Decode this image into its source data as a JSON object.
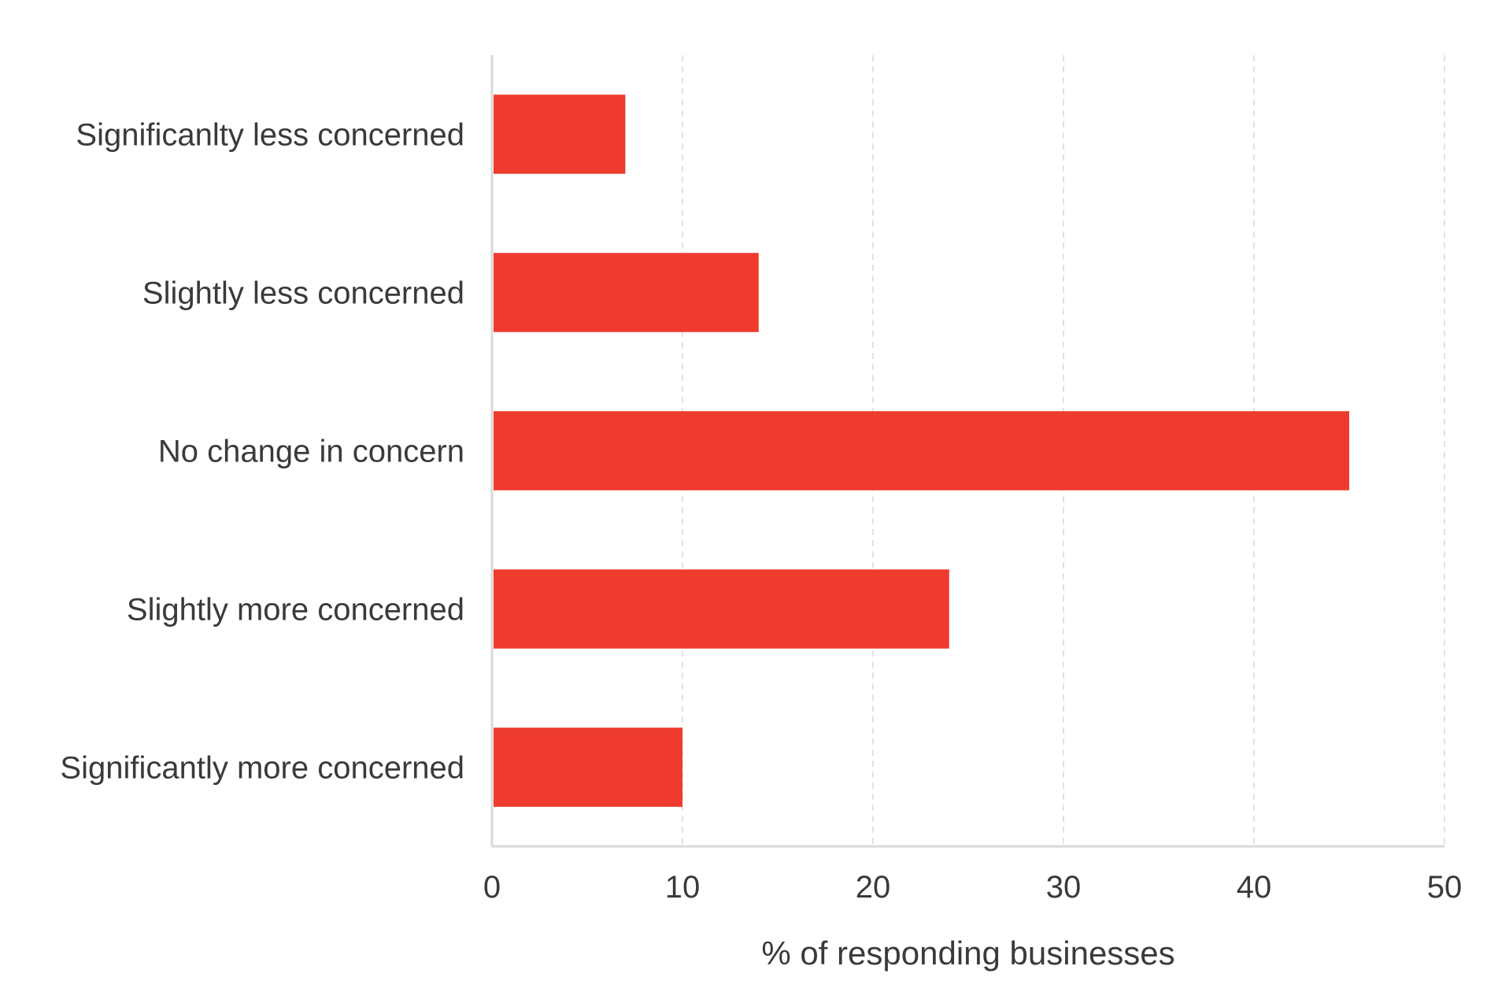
{
  "chart_data": {
    "type": "bar",
    "orientation": "horizontal",
    "categories": [
      "Significanlty less concerned",
      "Slightly less concerned",
      "No change in concern",
      "Slightly more concerned",
      "Significantly more concerned"
    ],
    "values": [
      7,
      14,
      45,
      24,
      10
    ],
    "xlabel": "% of responding businesses",
    "ylabel": "",
    "title": "",
    "xlim": [
      0,
      50
    ],
    "xticks": [
      0,
      10,
      20,
      30,
      40,
      50
    ],
    "grid": "vertical dashed",
    "legend": "none",
    "bar_color": "#ee3b2e",
    "axis_color": "#d9d9d9",
    "grid_color": "#d9d9d9",
    "text_color": "#3a3a3a"
  }
}
